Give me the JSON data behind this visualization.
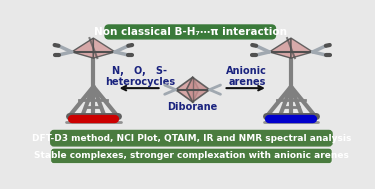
{
  "title_text": "Non classical B-H₇⋯π interaction",
  "title_box_color": "#3a7a3a",
  "title_text_color": "white",
  "title_fontsize": 7.5,
  "banner1_text": "DFT-D3 method, NCI Plot, QTAIM, IR and NMR spectral analysis",
  "banner2_text": "Stable complexes, stronger complexation with anionic arenes",
  "banner_bg_color": "#4a7c3f",
  "banner_text_color": "white",
  "banner_fontsize": 6.5,
  "middle_label": "Diborane",
  "left_label": "N,   O,   S-\nheterocycles",
  "right_label": "Anionic\narenes",
  "label_color": "#1a237e",
  "label_fontsize": 7,
  "bg_color": "#e8e8e8",
  "arrow_color": "#111111",
  "ring_fill": "#d4a0a0",
  "ring_fill2": "#c89090",
  "mol_gray": "#808080",
  "mol_dark": "#505050",
  "mol_red": "#cc0000",
  "mol_blue": "#0000cc",
  "mol_silver": "#a0a8b0"
}
